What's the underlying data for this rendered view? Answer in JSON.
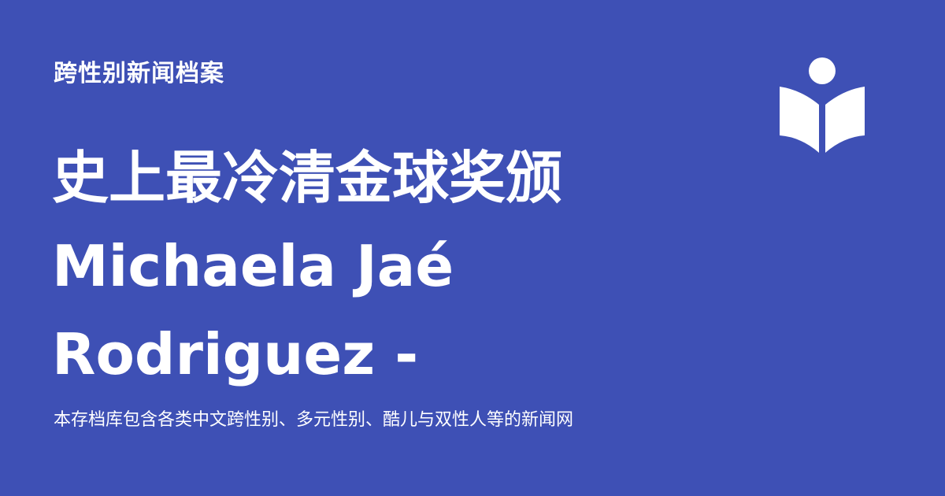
{
  "site": {
    "name": "跨性别新闻档案"
  },
  "article": {
    "title_lines": [
      "史上最冷清金球奖颁",
      "Michaela Jaé",
      "Rodriguez -"
    ],
    "description": "本存档库包含各类中文跨性别、多元性别、酷儿与双性人等的新闻网"
  },
  "theme": {
    "background": "#3e50b5",
    "text": "#ffffff"
  },
  "logo": {
    "icon": "open-book-reader-icon"
  }
}
